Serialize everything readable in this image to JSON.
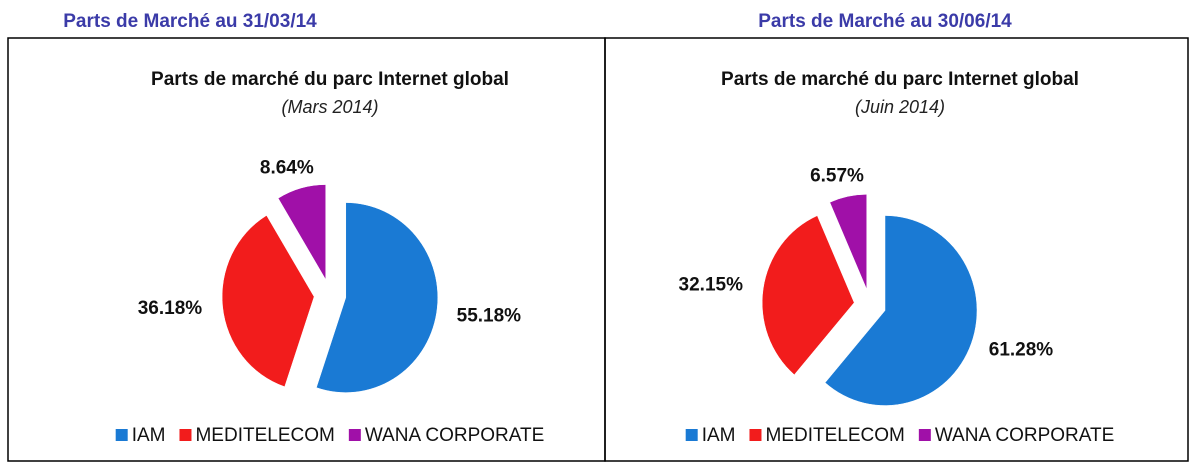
{
  "chart_data": [
    {
      "type": "pie",
      "heading": "Parts de Marché au 31/03/14",
      "title": "Parts de marché du parc Internet global",
      "subtitle": "(Mars 2014)",
      "categories": [
        "IAM",
        "MEDITELECOM",
        "WANA CORPORATE"
      ],
      "values": [
        55.18,
        36.18,
        8.64
      ],
      "value_labels": [
        "55.18%",
        "36.18%",
        "8.64%"
      ],
      "colors": [
        "#1a7ad4",
        "#f21c1c",
        "#a010a8"
      ],
      "legend": "bottom"
    },
    {
      "type": "pie",
      "heading": "Parts de Marché au 30/06/14",
      "title": "Parts de marché du parc Internet global",
      "subtitle": "(Juin 2014)",
      "categories": [
        "IAM",
        "MEDITELECOM",
        "WANA CORPORATE"
      ],
      "values": [
        61.28,
        32.15,
        6.57
      ],
      "value_labels": [
        "61.28%",
        "32.15%",
        "6.57%"
      ],
      "colors": [
        "#1a7ad4",
        "#f21c1c",
        "#a010a8"
      ],
      "legend": "bottom"
    }
  ]
}
